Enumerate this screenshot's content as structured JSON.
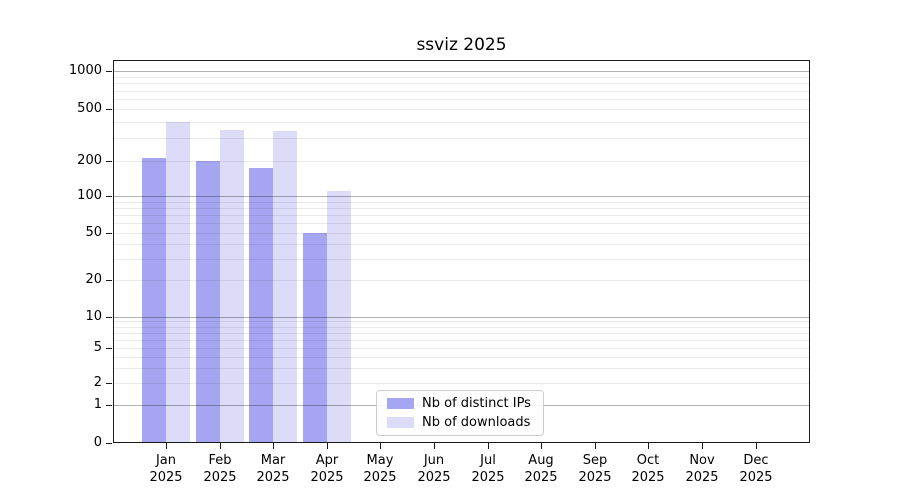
{
  "title": "ssviz 2025",
  "chart_data": {
    "type": "bar",
    "title": "ssviz 2025",
    "year_label": "2025",
    "categories": [
      "Jan 2025",
      "Feb 2025",
      "Mar 2025",
      "Apr 2025",
      "May 2025",
      "Jun 2025",
      "Jul 2025",
      "Aug 2025",
      "Sep 2025",
      "Oct 2025",
      "Nov 2025",
      "Dec 2025"
    ],
    "month_labels": [
      "Jan",
      "Feb",
      "Mar",
      "Apr",
      "May",
      "Jun",
      "Jul",
      "Aug",
      "Sep",
      "Oct",
      "Nov",
      "Dec"
    ],
    "series": [
      {
        "name": "Nb of distinct IPs",
        "color": "#a5a5f2",
        "values": [
          210,
          200,
          175,
          50,
          0,
          0,
          0,
          0,
          0,
          0,
          0,
          0
        ]
      },
      {
        "name": "Nb of downloads",
        "color": "#dcdcf9",
        "values": [
          400,
          345,
          340,
          110,
          0,
          0,
          0,
          0,
          0,
          0,
          0,
          0
        ]
      }
    ],
    "yscale": "symlog",
    "yticks": [
      0,
      1,
      2,
      5,
      10,
      20,
      50,
      100,
      200,
      500,
      1000
    ],
    "ylim": [
      0,
      1230
    ],
    "grid": "on",
    "legend_position": "bottom-center-inside"
  },
  "legend": {
    "items": [
      "Nb of distinct IPs",
      "Nb of downloads"
    ]
  },
  "colors": {
    "ips_bar": "#a5a5f2",
    "downloads_bar": "#dcdcf9",
    "grid_major": "#b3b3b3",
    "grid_minor": "#e8e8e8",
    "legend_border": "#cccccc"
  }
}
